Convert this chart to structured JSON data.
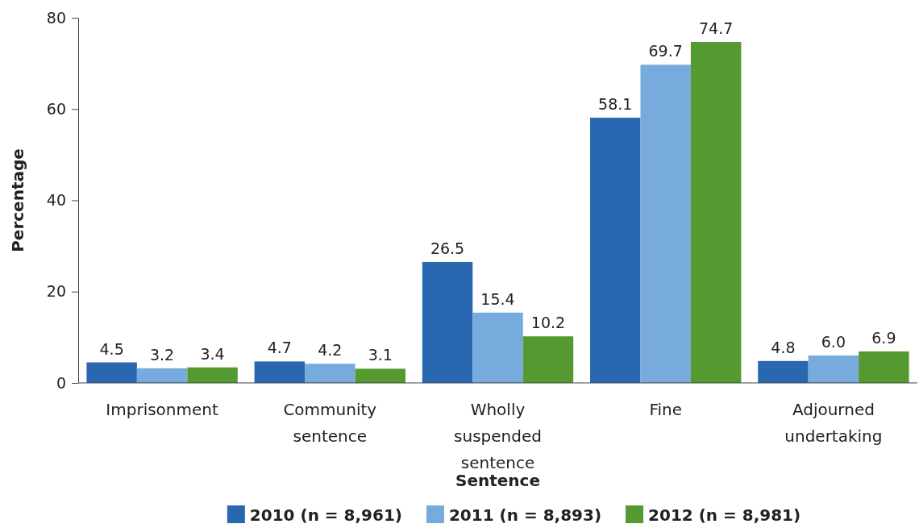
{
  "chart_data": {
    "type": "bar",
    "xlabel": "Sentence",
    "ylabel": "Percentage",
    "categories": [
      "Imprisonment",
      "Community sentence",
      "Wholly suspended sentence",
      "Fine",
      "Adjourned undertaking"
    ],
    "series": [
      {
        "name": "2010 (n = 8,961)",
        "color": "#2a67b1",
        "values": [
          4.5,
          4.7,
          26.5,
          58.1,
          4.8
        ],
        "value_labels": [
          "4.5",
          "4.7",
          "26.5",
          "58.1",
          "4.8"
        ]
      },
      {
        "name": "2011 (n = 8,893)",
        "color": "#77aadd",
        "values": [
          3.2,
          4.2,
          15.4,
          69.7,
          6.0
        ],
        "value_labels": [
          "3.2",
          "4.2",
          "15.4",
          "69.7",
          "6.0"
        ]
      },
      {
        "name": "2012 (n = 8,981)",
        "color": "#559a30",
        "values": [
          3.4,
          3.1,
          10.2,
          74.7,
          6.9
        ],
        "value_labels": [
          "3.4",
          "3.1",
          "10.2",
          "74.7",
          "6.9"
        ]
      }
    ],
    "ylim": [
      0,
      80
    ],
    "yticks": [
      0,
      20,
      40,
      60,
      80
    ],
    "grid": false,
    "legend": "bottom"
  }
}
